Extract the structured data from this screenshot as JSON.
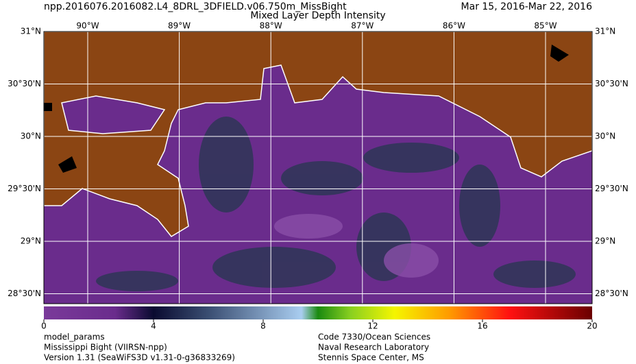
{
  "header": {
    "filename": "npp.2016076.2016082.L4_8DRL_3DFIELD.v06.750m_MissBight",
    "title": "Mixed Layer Depth Intensity",
    "dates": "Mar 15, 2016-Mar 22, 2016"
  },
  "map": {
    "lon_labels": [
      "90°W",
      "89°W",
      "88°W",
      "87°W",
      "86°W",
      "85°W"
    ],
    "lat_labels": [
      "31°N",
      "30°30'N",
      "30°N",
      "29°30'N",
      "29°N",
      "28°30'N"
    ]
  },
  "colorbar": {
    "lim": [
      0,
      20
    ],
    "ticks": [
      0,
      4,
      8,
      12,
      16,
      20
    ]
  },
  "footer": {
    "left": [
      "model_params",
      "Mississippi Bight (VIIRSN-npp)",
      "Version 1.31 (SeaWiFS3D v1.31-0-g36833269)"
    ],
    "right": [
      "Code 7330/Ocean Sciences",
      "Naval Research Laboratory",
      "Stennis Space Center, MS"
    ]
  }
}
